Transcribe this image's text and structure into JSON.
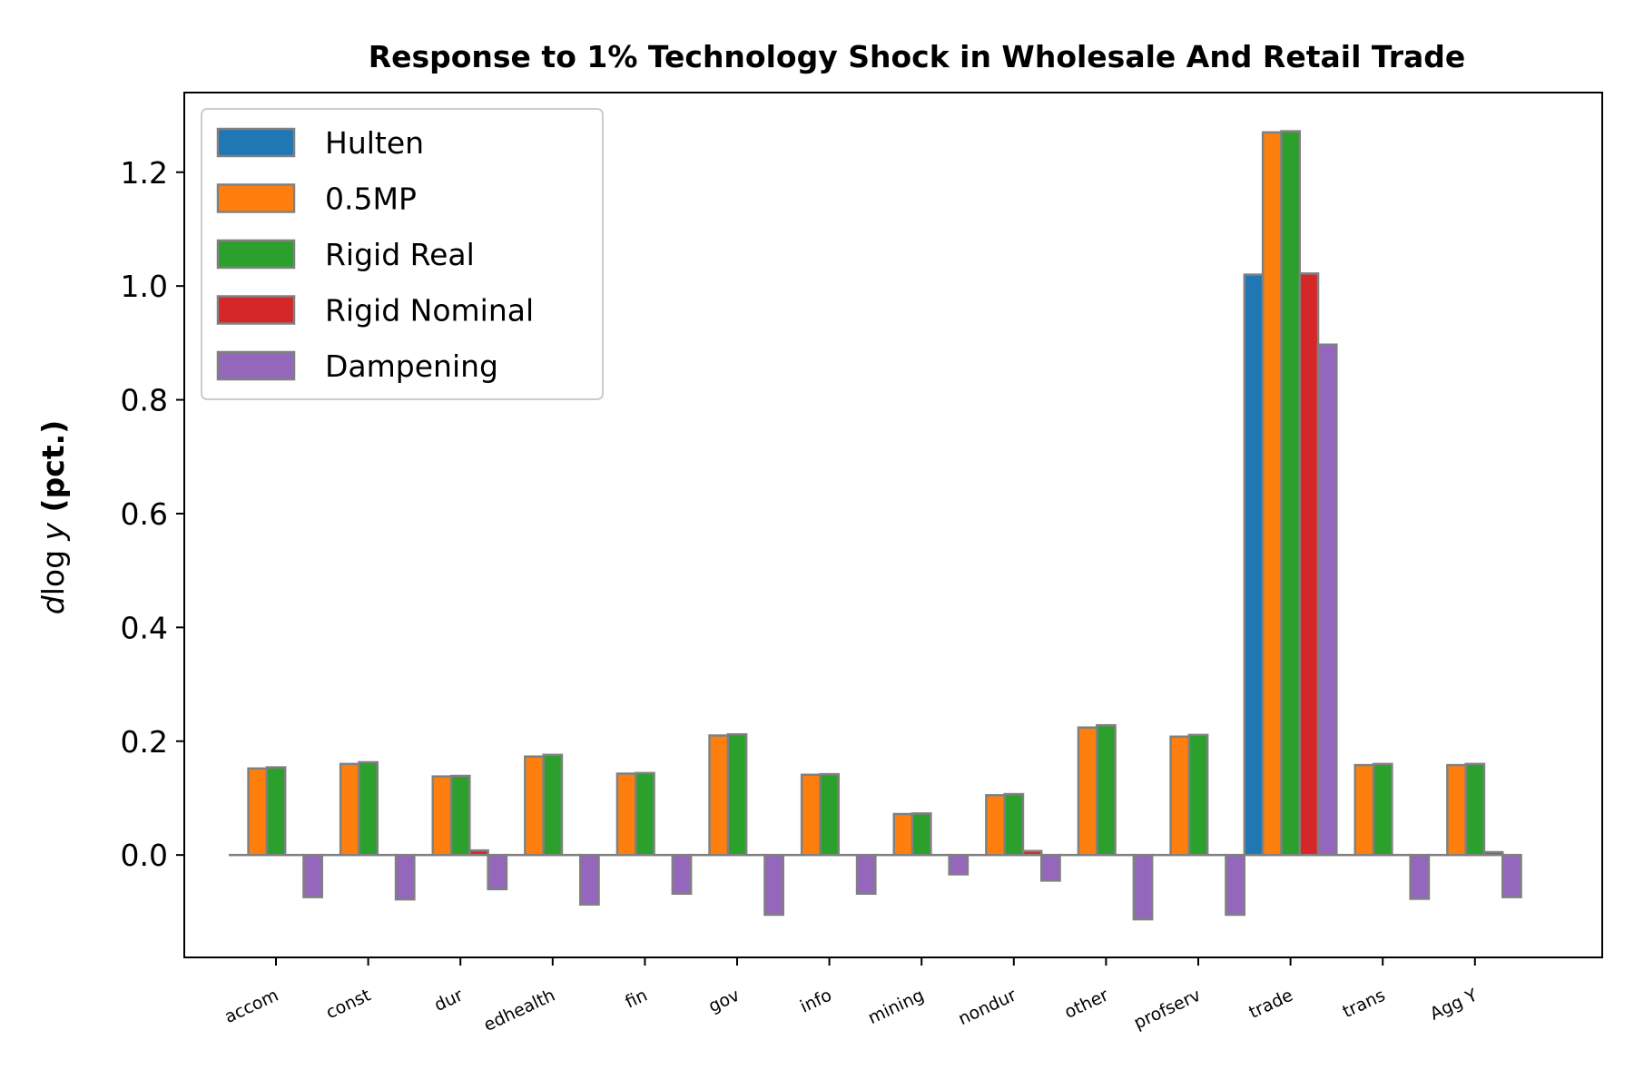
{
  "chart_data": {
    "type": "bar",
    "title": "Response to 1% Technology Shock in Wholesale And Retail Trade",
    "xlabel": "",
    "ylabel_italic": "d",
    "ylabel_mid": "log ",
    "ylabel_var": "y",
    "ylabel_bold": " (pct.)",
    "ylim": [
      -0.18,
      1.34
    ],
    "yticks": [
      0.0,
      0.2,
      0.4,
      0.6,
      0.8,
      1.0,
      1.2
    ],
    "ytick_labels": [
      "0.0",
      "0.2",
      "0.4",
      "0.6",
      "0.8",
      "1.0",
      "1.2"
    ],
    "grid": false,
    "legend_position": "top-left",
    "categories": [
      "accom",
      "const",
      "dur",
      "edhealth",
      "fin",
      "gov",
      "info",
      "mining",
      "nondur",
      "other",
      "profserv",
      "trade",
      "trans",
      "Agg Y"
    ],
    "series": [
      {
        "name": "Hulten",
        "color": "#1f77b4",
        "values": [
          0.0,
          0.0,
          0.0,
          0.0,
          0.0,
          0.0,
          0.0,
          0.0,
          0.0,
          0.0,
          0.0,
          1.02,
          0.0,
          0.0
        ]
      },
      {
        "name": "0.5MP",
        "color": "#ff7f0e",
        "values": [
          0.152,
          0.16,
          0.138,
          0.173,
          0.143,
          0.21,
          0.141,
          0.072,
          0.105,
          0.224,
          0.208,
          1.27,
          0.158,
          0.158
        ]
      },
      {
        "name": "Rigid Real",
        "color": "#2ca02c",
        "values": [
          0.154,
          0.163,
          0.139,
          0.176,
          0.144,
          0.212,
          0.142,
          0.073,
          0.107,
          0.228,
          0.211,
          1.272,
          0.16,
          0.16
        ]
      },
      {
        "name": "Rigid Nominal",
        "color": "#d62728",
        "values": [
          0.0,
          0.0,
          0.008,
          0.0,
          0.0,
          0.0,
          0.0,
          0.0,
          0.007,
          0.0,
          0.0,
          1.022,
          0.0,
          0.005
        ]
      },
      {
        "name": "Dampening",
        "color": "#9467bd",
        "values": [
          -0.074,
          -0.078,
          -0.06,
          -0.087,
          -0.068,
          -0.105,
          -0.068,
          -0.034,
          -0.045,
          -0.113,
          -0.105,
          0.897,
          -0.077,
          -0.074
        ]
      }
    ]
  }
}
